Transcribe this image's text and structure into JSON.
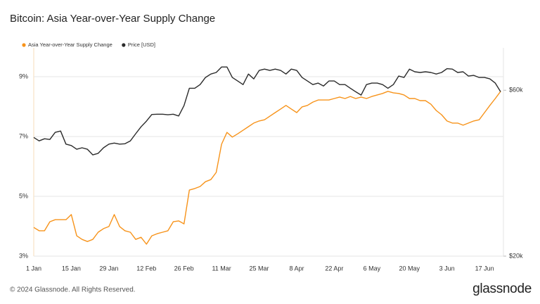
{
  "chart_data": {
    "type": "line",
    "title": "Bitcoin: Asia Year-over-Year Supply Change",
    "footer": "© 2024 Glassnode. All Rights Reserved.",
    "brand": "glassnode",
    "x": [
      "1 Jan",
      "3 Jan",
      "5 Jan",
      "7 Jan",
      "9 Jan",
      "11 Jan",
      "13 Jan",
      "15 Jan",
      "17 Jan",
      "19 Jan",
      "21 Jan",
      "23 Jan",
      "25 Jan",
      "27 Jan",
      "29 Jan",
      "31 Jan",
      "2 Feb",
      "4 Feb",
      "6 Feb",
      "8 Feb",
      "10 Feb",
      "12 Feb",
      "14 Feb",
      "16 Feb",
      "18 Feb",
      "20 Feb",
      "22 Feb",
      "24 Feb",
      "26 Feb",
      "28 Feb",
      "1 Mar",
      "3 Mar",
      "5 Mar",
      "7 Mar",
      "9 Mar",
      "11 Mar",
      "13 Mar",
      "15 Mar",
      "17 Mar",
      "19 Mar",
      "21 Mar",
      "23 Mar",
      "25 Mar",
      "27 Mar",
      "29 Mar",
      "31 Mar",
      "2 Apr",
      "4 Apr",
      "6 Apr",
      "8 Apr",
      "10 Apr",
      "12 Apr",
      "14 Apr",
      "16 Apr",
      "18 Apr",
      "20 Apr",
      "22 Apr",
      "24 Apr",
      "26 Apr",
      "28 Apr",
      "30 Apr",
      "2 May",
      "4 May",
      "6 May",
      "8 May",
      "10 May",
      "12 May",
      "14 May",
      "16 May",
      "18 May",
      "20 May",
      "22 May",
      "24 May",
      "26 May",
      "28 May",
      "30 May",
      "1 Jun",
      "3 Jun",
      "5 Jun",
      "7 Jun",
      "9 Jun",
      "11 Jun",
      "13 Jun",
      "15 Jun",
      "17 Jun",
      "19 Jun",
      "21 Jun",
      "23 Jun"
    ],
    "xticks": [
      "1 Jan",
      "15 Jan",
      "29 Jan",
      "12 Feb",
      "26 Feb",
      "11 Mar",
      "25 Mar",
      "8 Apr",
      "22 Apr",
      "6 May",
      "20 May",
      "3 Jun",
      "17 Jun"
    ],
    "ylim": [
      3,
      10
    ],
    "yticks": [
      {
        "value": 3,
        "label": "3%"
      },
      {
        "value": 5,
        "label": "5%"
      },
      {
        "value": 7,
        "label": "7%"
      },
      {
        "value": 9,
        "label": "9%"
      }
    ],
    "y2lim": [
      20000,
      80000
    ],
    "y2log": true,
    "y2ticks": [
      {
        "value": 20000,
        "label": "$20k"
      },
      {
        "value": 60000,
        "label": "$60k"
      }
    ],
    "grid": true,
    "legend": "top-left",
    "series": [
      {
        "name": "Asia Year-over-Year Supply Change",
        "color": "#f7931a",
        "values": [
          3.96,
          3.85,
          3.85,
          4.15,
          4.22,
          4.22,
          4.22,
          4.39,
          3.68,
          3.56,
          3.49,
          3.56,
          3.8,
          3.92,
          3.99,
          4.39,
          3.99,
          3.85,
          3.8,
          3.56,
          3.63,
          3.4,
          3.68,
          3.75,
          3.8,
          3.85,
          4.15,
          4.18,
          4.08,
          5.21,
          5.26,
          5.33,
          5.49,
          5.56,
          5.8,
          6.74,
          7.14,
          6.98,
          7.09,
          7.21,
          7.33,
          7.45,
          7.52,
          7.56,
          7.68,
          7.8,
          7.92,
          8.04,
          7.92,
          7.8,
          7.99,
          8.04,
          8.15,
          8.22,
          8.22,
          8.22,
          8.27,
          8.32,
          8.27,
          8.34,
          8.27,
          8.32,
          8.27,
          8.34,
          8.39,
          8.44,
          8.51,
          8.46,
          8.44,
          8.39,
          8.27,
          8.27,
          8.2,
          8.2,
          8.08,
          7.87,
          7.73,
          7.52,
          7.45,
          7.45,
          7.38,
          7.45,
          7.52,
          7.56,
          7.8,
          8.04,
          8.27,
          8.51
        ]
      },
      {
        "name": "Price [USD]",
        "color": "#2b2b2b",
        "axis": "y2",
        "values": [
          43900,
          42900,
          43500,
          43300,
          45400,
          45800,
          42000,
          41600,
          40600,
          41000,
          40600,
          39100,
          39500,
          41000,
          42000,
          42300,
          42000,
          42100,
          42900,
          45000,
          47100,
          48900,
          51100,
          51200,
          51200,
          51000,
          51200,
          50600,
          54200,
          60800,
          60800,
          62300,
          65300,
          66800,
          67500,
          70000,
          70000,
          65300,
          63800,
          62300,
          66800,
          64700,
          68400,
          69000,
          68400,
          69000,
          68400,
          66800,
          69000,
          68400,
          65300,
          63800,
          62300,
          62900,
          61700,
          63800,
          63800,
          62300,
          62300,
          60800,
          59400,
          58100,
          62300,
          62900,
          62900,
          62300,
          60800,
          62300,
          65900,
          65300,
          69000,
          67800,
          67500,
          67800,
          67500,
          66800,
          67500,
          69200,
          69000,
          67500,
          67800,
          65900,
          66200,
          65300,
          65300,
          64700,
          62900,
          59400
        ]
      }
    ]
  }
}
